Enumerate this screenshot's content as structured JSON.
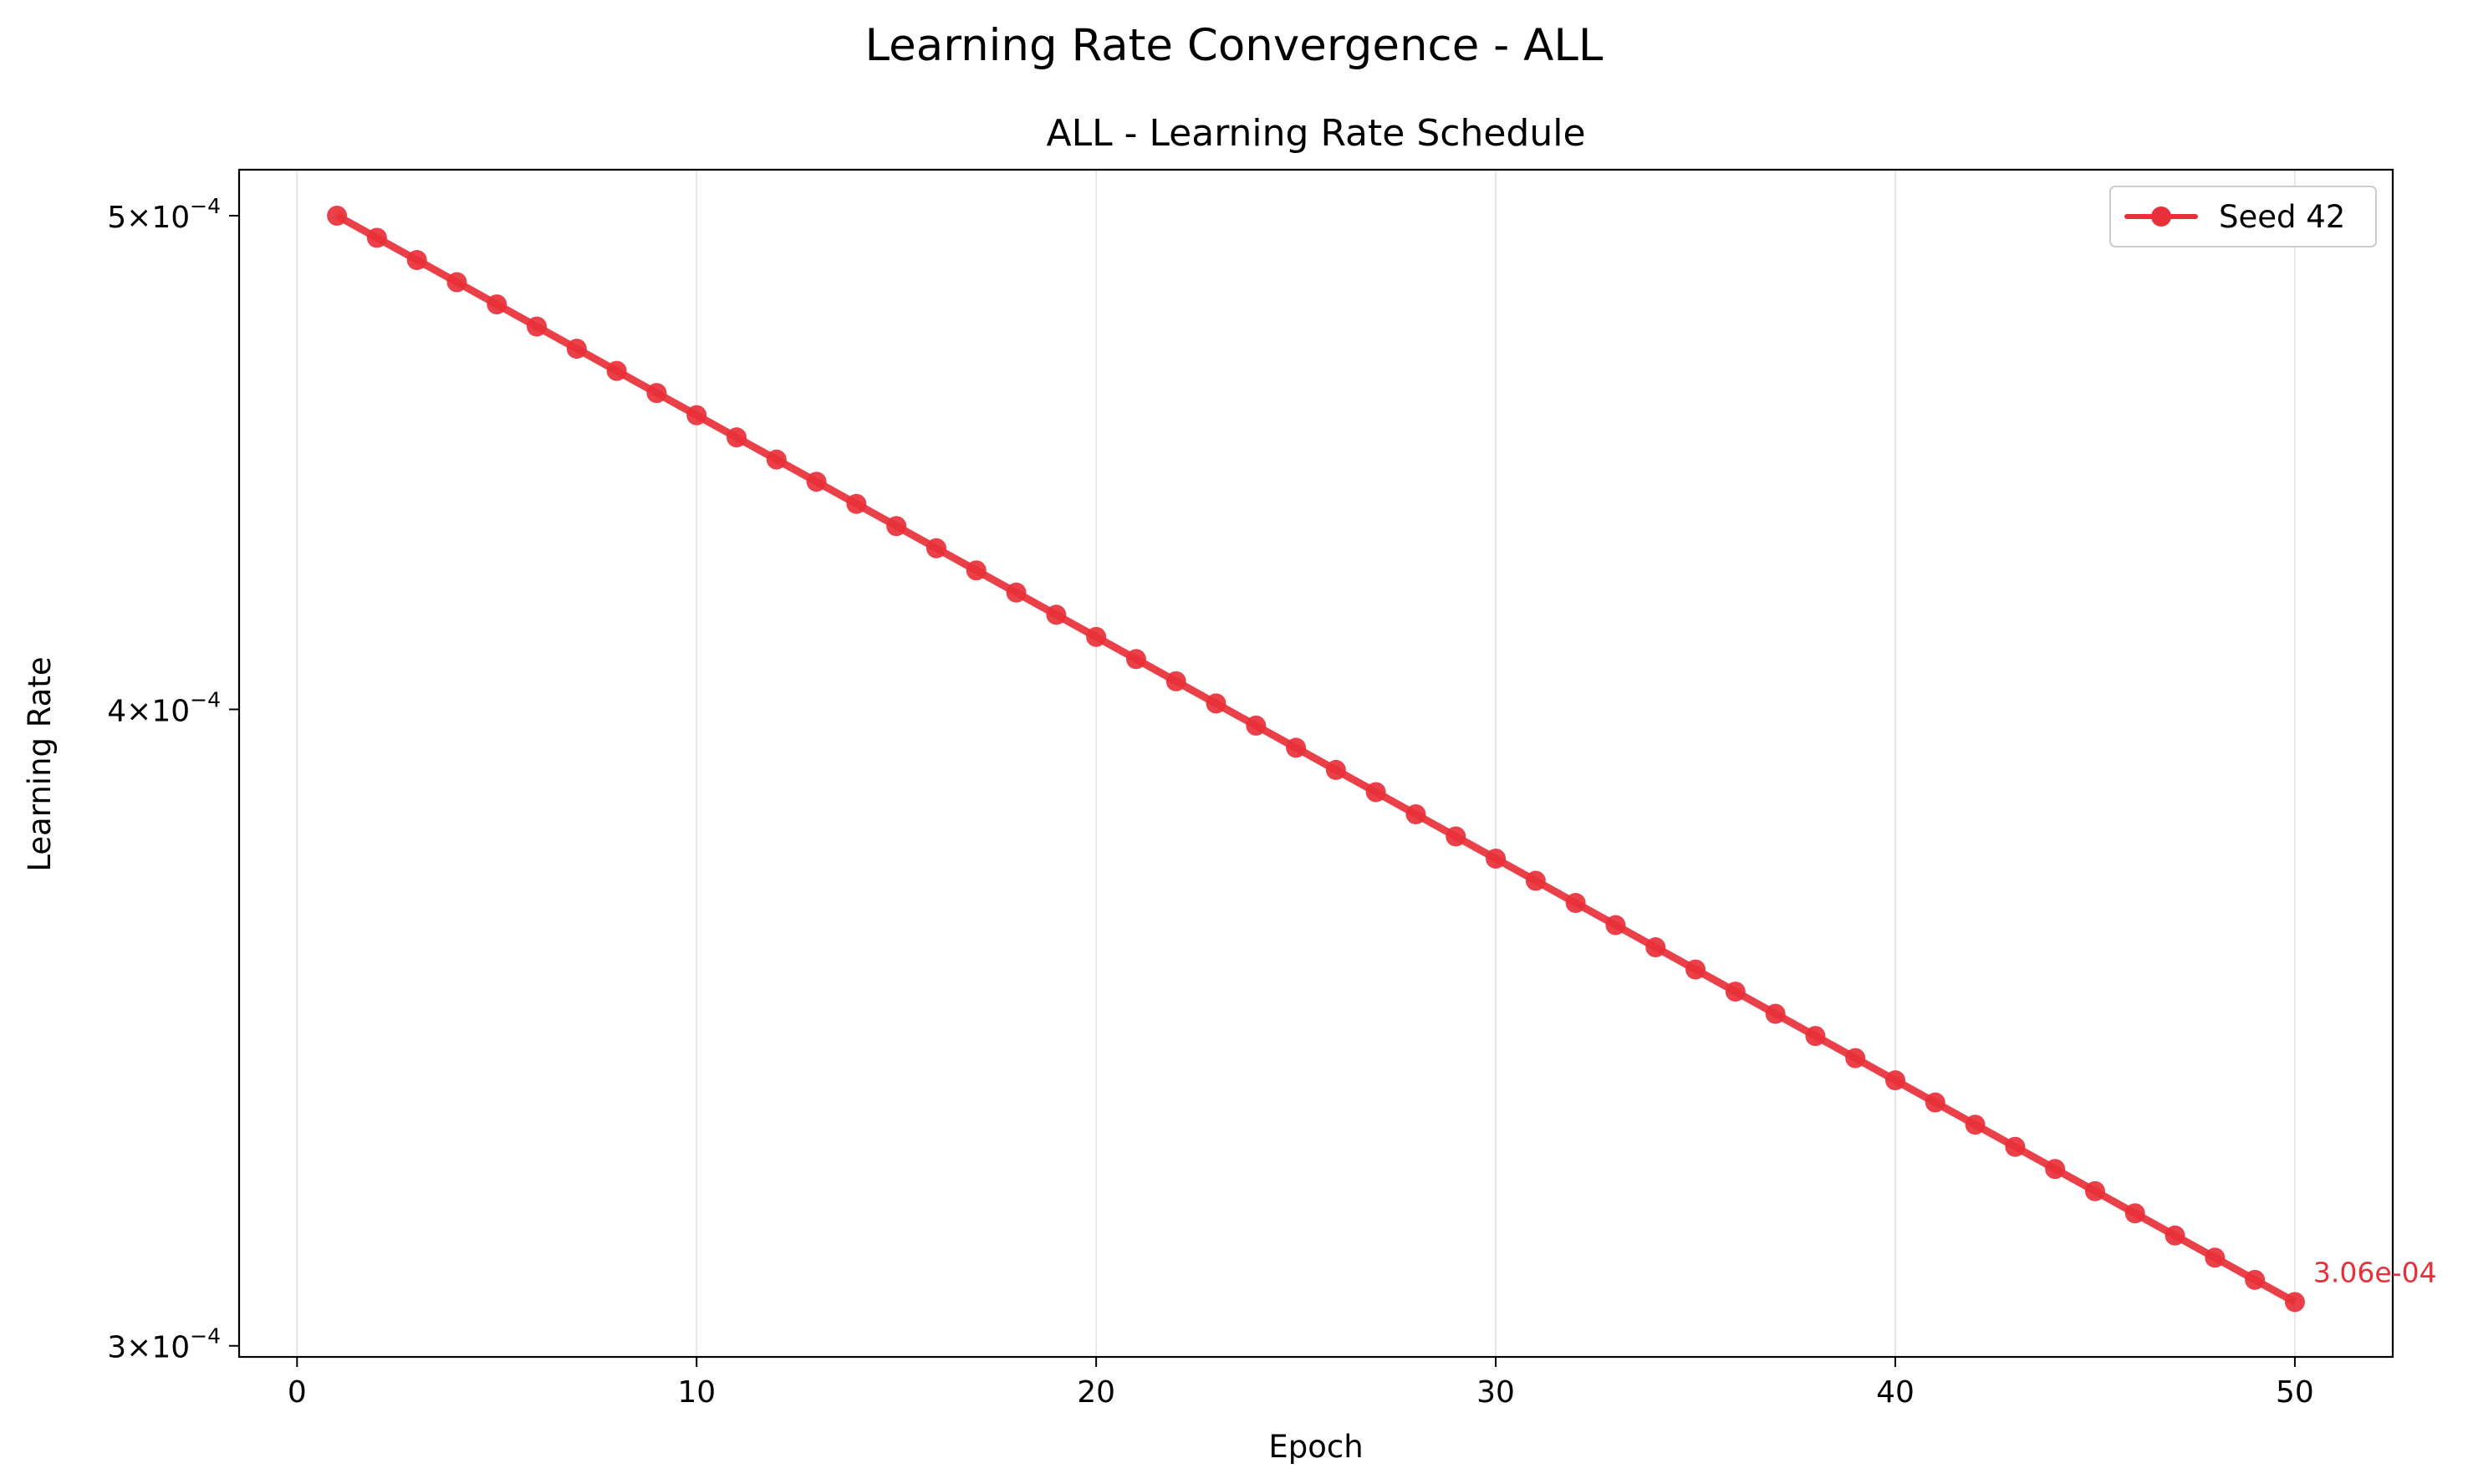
{
  "chart_data": {
    "type": "line",
    "suptitle": "Learning Rate Convergence - ALL",
    "title": "ALL - Learning Rate Schedule",
    "xlabel": "Epoch",
    "ylabel": "Learning Rate",
    "xlim": [
      -1.45,
      52.45
    ],
    "ylim": [
      0.0002985,
      0.0005105
    ],
    "yscale": "log",
    "x_ticks": [
      0,
      10,
      20,
      30,
      40,
      50
    ],
    "y_ticks": [
      {
        "value": 0.0003,
        "mantissa": "3",
        "exponent": "−4"
      },
      {
        "value": 0.0004,
        "mantissa": "4",
        "exponent": "−4"
      },
      {
        "value": 0.0005,
        "mantissa": "5",
        "exponent": "−4"
      }
    ],
    "grid": "vertical",
    "legend_position": "top-right",
    "color": "#e8303a",
    "series": [
      {
        "name": "Seed 42",
        "x": [
          1,
          2,
          3,
          4,
          5,
          6,
          7,
          8,
          9,
          10,
          11,
          12,
          13,
          14,
          15,
          16,
          17,
          18,
          19,
          20,
          21,
          22,
          23,
          24,
          25,
          26,
          27,
          28,
          29,
          30,
          31,
          32,
          33,
          34,
          35,
          36,
          37,
          38,
          39,
          40,
          41,
          42,
          43,
          44,
          45,
          46,
          47,
          48,
          49,
          50
        ],
        "y_start": 0.0005,
        "y_end": 0.000306,
        "schedule": "geometric decay per epoch"
      }
    ],
    "annotation": {
      "x": 50,
      "text": "3.06e-04"
    }
  }
}
